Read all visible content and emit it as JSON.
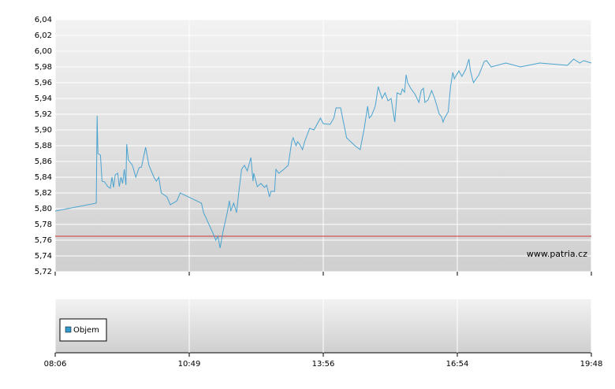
{
  "chart_data": {
    "type": "line",
    "color": "#4aa3cf",
    "x": [
      486,
      536,
      537,
      538,
      541,
      543,
      546,
      550,
      553,
      555,
      557,
      559,
      562,
      564,
      566,
      568,
      570,
      572,
      573,
      575,
      580,
      584,
      588,
      591,
      596,
      600,
      606,
      609,
      612,
      615,
      622,
      626,
      634,
      638,
      666,
      669,
      678,
      684,
      686,
      689,
      692,
      696,
      702,
      705,
      707,
      711,
      715,
      719,
      722,
      726,
      730,
      735,
      738,
      739,
      744,
      749,
      754,
      757,
      761,
      763,
      768,
      770,
      774,
      781,
      787,
      792,
      794,
      798,
      800,
      803,
      807,
      810,
      817,
      823,
      826,
      832,
      836,
      845,
      850,
      853,
      859,
      867,
      878,
      885,
      890,
      895,
      897,
      900,
      905,
      909,
      914,
      918,
      922,
      926,
      931,
      934,
      939,
      941,
      944,
      946,
      948,
      952,
      958,
      963,
      966,
      969,
      971,
      975,
      980,
      984,
      987,
      990,
      993,
      995,
      997,
      1002,
      1005,
      1008,
      1010,
      1016,
      1020,
      1025,
      1029,
      1031,
      1035,
      1042,
      1049,
      1052,
      1058,
      1077,
      1096,
      1121,
      1157,
      1165,
      1173,
      1178,
      1188
    ],
    "values": [
      5.797,
      5.807,
      5.918,
      5.87,
      5.868,
      5.835,
      5.834,
      5.828,
      5.826,
      5.84,
      5.827,
      5.843,
      5.845,
      5.828,
      5.84,
      5.832,
      5.85,
      5.83,
      5.882,
      5.862,
      5.855,
      5.84,
      5.852,
      5.853,
      5.878,
      5.855,
      5.84,
      5.835,
      5.84,
      5.82,
      5.815,
      5.805,
      5.81,
      5.82,
      5.807,
      5.795,
      5.777,
      5.765,
      5.76,
      5.765,
      5.75,
      5.77,
      5.795,
      5.81,
      5.797,
      5.807,
      5.795,
      5.827,
      5.85,
      5.855,
      5.848,
      5.865,
      5.835,
      5.845,
      5.828,
      5.832,
      5.827,
      5.83,
      5.815,
      5.822,
      5.822,
      5.85,
      5.845,
      5.85,
      5.855,
      5.885,
      5.89,
      5.88,
      5.885,
      5.882,
      5.875,
      5.885,
      5.902,
      5.9,
      5.905,
      5.915,
      5.908,
      5.907,
      5.915,
      5.928,
      5.928,
      5.89,
      5.88,
      5.875,
      5.9,
      5.93,
      5.915,
      5.918,
      5.93,
      5.955,
      5.94,
      5.947,
      5.937,
      5.94,
      5.91,
      5.947,
      5.945,
      5.952,
      5.948,
      5.97,
      5.96,
      5.953,
      5.945,
      5.935,
      5.95,
      5.953,
      5.935,
      5.938,
      5.95,
      5.94,
      5.93,
      5.92,
      5.917,
      5.91,
      5.915,
      5.923,
      5.955,
      5.973,
      5.965,
      5.975,
      5.968,
      5.977,
      5.99,
      5.975,
      5.96,
      5.97,
      5.987,
      5.988,
      5.98,
      5.985,
      5.98,
      5.985,
      5.982,
      5.99,
      5.985,
      5.988,
      5.985
    ],
    "xlim": [
      486,
      1188
    ],
    "xticks": [
      {
        "value": 486,
        "label": "08:06"
      },
      {
        "value": 649,
        "label": "10:49"
      },
      {
        "value": 836,
        "label": "13:56"
      },
      {
        "value": 1014,
        "label": "16:54"
      },
      {
        "value": 1188,
        "label": "19:48"
      }
    ],
    "ylim": [
      5.72,
      6.04
    ],
    "yticks": [
      {
        "value": 5.72,
        "label": "5,72"
      },
      {
        "value": 5.74,
        "label": "5,74"
      },
      {
        "value": 5.76,
        "label": "5,76"
      },
      {
        "value": 5.78,
        "label": "5,78"
      },
      {
        "value": 5.8,
        "label": "5,80"
      },
      {
        "value": 5.82,
        "label": "5,82"
      },
      {
        "value": 5.84,
        "label": "5,84"
      },
      {
        "value": 5.86,
        "label": "5,86"
      },
      {
        "value": 5.88,
        "label": "5,88"
      },
      {
        "value": 5.9,
        "label": "5,90"
      },
      {
        "value": 5.92,
        "label": "5,92"
      },
      {
        "value": 5.94,
        "label": "5,94"
      },
      {
        "value": 5.96,
        "label": "5,96"
      },
      {
        "value": 5.98,
        "label": "5,98"
      },
      {
        "value": 6.0,
        "label": "6,00"
      },
      {
        "value": 6.02,
        "label": "6,02"
      },
      {
        "value": 6.04,
        "label": "6,04"
      }
    ],
    "grid": true,
    "reference_line": {
      "value": 5.765,
      "color": "#cc3333"
    },
    "watermark": "www.patria.cz",
    "volume_legend": {
      "name": "Objem",
      "color": "#3399cc"
    }
  }
}
